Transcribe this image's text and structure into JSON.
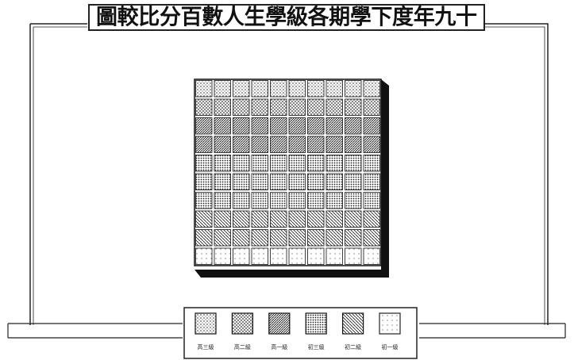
{
  "chart_data": {
    "type": "waffle",
    "title": "圖較比分百數人生學級各期學下度年九十",
    "columns": 10,
    "series": [
      {
        "name": "高三級",
        "color": "#d9d9d9",
        "values": [
          10
        ]
      },
      {
        "name": "高二級",
        "color": "#b8b8b8",
        "values": [
          10
        ]
      },
      {
        "name": "高一級",
        "color": "#8c8c8c",
        "values": [
          20
        ]
      },
      {
        "name": "初三級",
        "color": "#a6a6a6",
        "values": [
          30
        ]
      },
      {
        "name": "初二級",
        "color": "#9a9a9a",
        "values": [
          20
        ]
      },
      {
        "name": "初一級",
        "color": "#efefef",
        "values": [
          10
        ]
      }
    ]
  }
}
